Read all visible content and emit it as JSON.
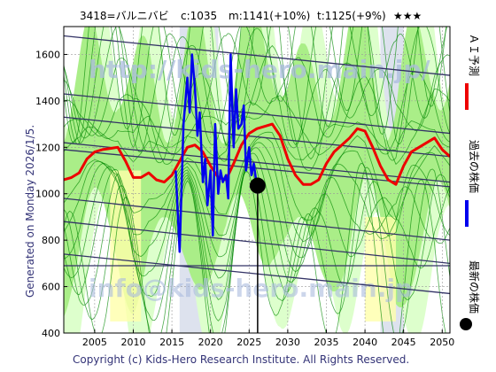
{
  "header": {
    "code": "3418=バルニバビ",
    "current": "c:1035",
    "median": "m:1141(+10%)",
    "target": "t:1125(+9%)",
    "rating": "★★★"
  },
  "generated_text": "Generated on Monday 2026/1/5.",
  "copyright": "Copyright (c) Kids-Hero Research Institute. All Rights Reserved.",
  "watermarks": [
    "http://kids-hero.main.jp/",
    "info@kids-hero.main.jp"
  ],
  "legend": {
    "ai_forecast": "ＡＩ予測",
    "past_price": "過去の株価",
    "latest_price": "最新の株価"
  },
  "colors": {
    "ai_forecast": "#ee0000",
    "past_price": "#0000ee",
    "latest_marker": "#000000",
    "band_fill": "#aaee88",
    "band_outer": "#ddffcc",
    "band_lines": "#008800",
    "yellow_fill": "#ffffaa",
    "trend_lines": "#333366",
    "grid": "#999999"
  },
  "chart_data": {
    "type": "line",
    "xlim": [
      2001,
      2051
    ],
    "ylim": [
      400,
      1720
    ],
    "x_ticks": [
      2005,
      2010,
      2015,
      2020,
      2025,
      2030,
      2035,
      2040,
      2045,
      2050
    ],
    "y_ticks": [
      400,
      600,
      800,
      1000,
      1200,
      1400,
      1600
    ],
    "grid": true,
    "series": [
      {
        "name": "ＡＩ予測",
        "x": [
          2001,
          2002,
          2003,
          2004,
          2005,
          2006,
          2007,
          2008,
          2009,
          2010,
          2011,
          2012,
          2013,
          2014,
          2015,
          2016,
          2017,
          2018,
          2019,
          2020,
          2021,
          2022,
          2023,
          2024,
          2025,
          2026,
          2027,
          2028,
          2029,
          2030,
          2031,
          2032,
          2033,
          2034,
          2035,
          2036,
          2037,
          2038,
          2039,
          2040,
          2041,
          2042,
          2043,
          2044,
          2045,
          2046,
          2047,
          2048,
          2049,
          2050,
          2051
        ],
        "values": [
          1060,
          1070,
          1090,
          1150,
          1180,
          1190,
          1195,
          1200,
          1140,
          1070,
          1070,
          1090,
          1060,
          1050,
          1080,
          1140,
          1200,
          1210,
          1180,
          1120,
          1070,
          1060,
          1130,
          1210,
          1260,
          1280,
          1290,
          1300,
          1250,
          1150,
          1080,
          1040,
          1040,
          1060,
          1130,
          1180,
          1210,
          1240,
          1280,
          1270,
          1200,
          1120,
          1060,
          1040,
          1120,
          1180,
          1200,
          1220,
          1240,
          1190,
          1160
        ]
      },
      {
        "name": "過去の株価",
        "x": [
          2015.5,
          2016.0,
          2016.5,
          2017.0,
          2017.3,
          2017.6,
          2018.0,
          2018.3,
          2018.6,
          2019.0,
          2019.3,
          2019.6,
          2020.0,
          2020.3,
          2020.6,
          2021.0,
          2021.3,
          2021.6,
          2022.0,
          2022.3,
          2022.6,
          2023.0,
          2023.3,
          2023.6,
          2024.0,
          2024.3,
          2024.6,
          2025.0,
          2025.3,
          2025.6,
          2026.0
        ],
        "values": [
          1100,
          750,
          1300,
          1500,
          1350,
          1600,
          1450,
          1250,
          1350,
          1050,
          1150,
          950,
          1100,
          820,
          1300,
          1000,
          1100,
          1050,
          1080,
          980,
          1600,
          1200,
          1450,
          1280,
          1300,
          1380,
          1100,
          1200,
          1080,
          1130,
          1035
        ]
      }
    ],
    "latest_point": {
      "x": 2026.1,
      "y": 1035
    }
  }
}
